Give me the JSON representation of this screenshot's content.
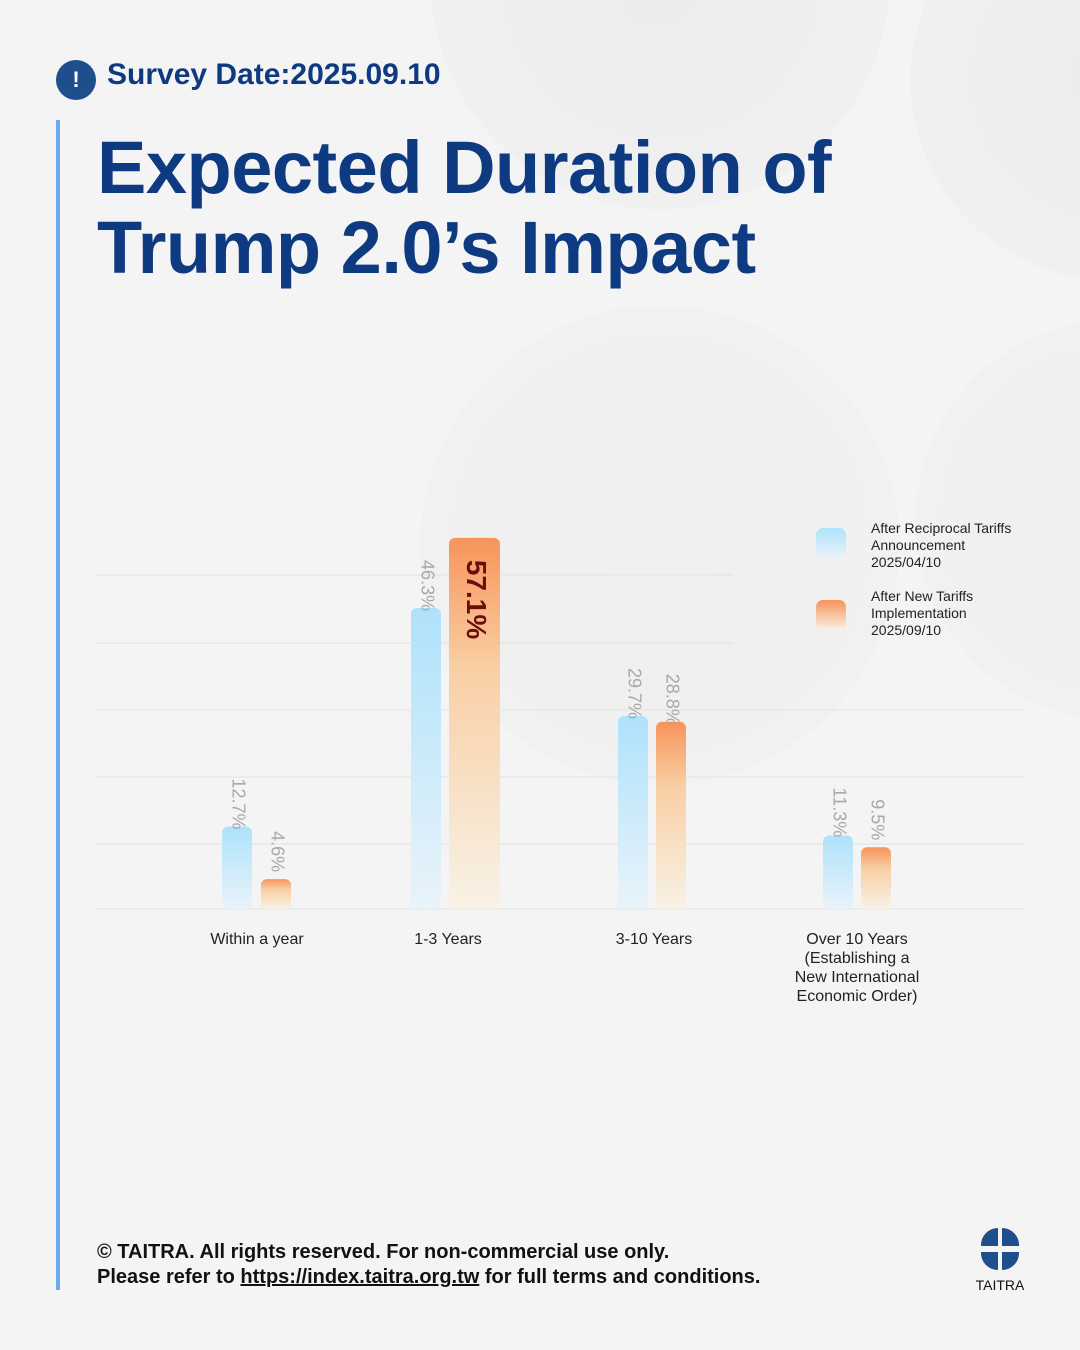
{
  "header": {
    "badge_icon": "!",
    "survey_date": "Survey Date:2025.09.10"
  },
  "title": {
    "line1": "Expected Duration of",
    "line2": "Trump 2.0’s Impact"
  },
  "chart_data": {
    "type": "bar",
    "title": "Expected Duration of Trump 2.0’s Impact",
    "categories": [
      "Within a year",
      "1-3 Years",
      "3-10 Years",
      "Over 10 Years\n(Establishing a\nNew International\nEconomic Order)"
    ],
    "series": [
      {
        "name": "After Reciprocal Tariffs\nAnnouncement\n2025/04/10",
        "values": [
          12.7,
          46.3,
          29.7,
          11.3
        ],
        "labels": [
          "12.7%",
          "46.3%",
          "29.7%",
          "11.3%"
        ],
        "color": "#aee2fb"
      },
      {
        "name": "After New Tariffs\nImplementation\n 2025/09/10",
        "values": [
          4.6,
          57.1,
          28.8,
          9.5
        ],
        "labels": [
          "4.6%",
          "57.1%",
          "28.8%",
          "9.5%"
        ],
        "color": "#f7945a"
      }
    ],
    "highlight_label_color": "#6b0d0d",
    "ylim": [
      0,
      60
    ],
    "grid": true,
    "legend": "top-right"
  },
  "footer": {
    "line1": "© TAITRA. All rights reserved. For non-commercial use only.",
    "line2_pre": "Please refer to ",
    "link": "https://index.taitra.org.tw",
    "line2_post": " for full terms and conditions."
  },
  "logo": {
    "text": "TAITRA"
  }
}
